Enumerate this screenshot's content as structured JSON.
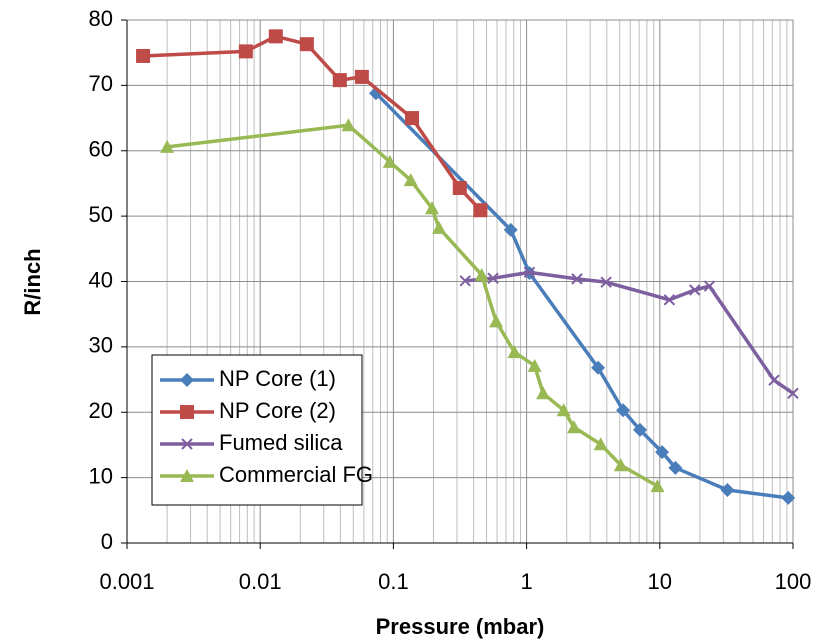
{
  "chart_data": {
    "type": "line",
    "x_label": "Pressure (mbar)",
    "y_label": "R/inch",
    "xscale": "log",
    "xlim": [
      0.001,
      100
    ],
    "xticks": [
      0.001,
      0.01,
      0.1,
      1,
      10,
      100
    ],
    "ylim": [
      0,
      80
    ],
    "yticks": [
      0,
      10,
      20,
      30,
      40,
      50,
      60,
      70,
      80
    ],
    "grid": true,
    "legend": "lower left",
    "series": [
      {
        "name": "NP Core (1)",
        "color": "#4a7ebb",
        "marker": "diamond",
        "x": [
          0.074,
          0.76,
          1.05,
          3.44,
          5.3,
          7.1,
          10.4,
          13.1,
          32.2,
          92
        ],
        "values": [
          68.8,
          47.9,
          41.3,
          26.8,
          20.3,
          17.3,
          13.9,
          11.5,
          8.1,
          6.9
        ]
      },
      {
        "name": "NP Core (2)",
        "color": "#be4b48",
        "marker": "square",
        "x": [
          0.00132,
          0.0078,
          0.0131,
          0.0224,
          0.0396,
          0.058,
          0.138,
          0.315,
          0.45
        ],
        "values": [
          74.5,
          75.2,
          77.5,
          76.3,
          70.8,
          71.3,
          65,
          54.3,
          50.9
        ]
      },
      {
        "name": "Fumed silica",
        "color": "#7d5fa0",
        "marker": "x",
        "x": [
          0.346,
          0.56,
          1.05,
          2.39,
          3.95,
          11.8,
          18.3,
          23.6,
          72,
          100
        ],
        "values": [
          40.1,
          40.5,
          41.4,
          40.4,
          39.9,
          37.2,
          38.7,
          39.3,
          24.9,
          22.9
        ]
      },
      {
        "name": "Commercial FG",
        "color": "#98b954",
        "marker": "triangle",
        "x": [
          0.002,
          0.046,
          0.094,
          0.135,
          0.195,
          0.22,
          0.46,
          0.59,
          0.81,
          1.15,
          1.33,
          1.9,
          2.27,
          3.6,
          5.1,
          9.6
        ],
        "values": [
          60.6,
          63.9,
          58.3,
          55.5,
          51.2,
          48.2,
          41,
          33.9,
          29.2,
          27.1,
          22.9,
          20.3,
          17.7,
          15.1,
          11.9,
          8.7
        ]
      }
    ]
  }
}
